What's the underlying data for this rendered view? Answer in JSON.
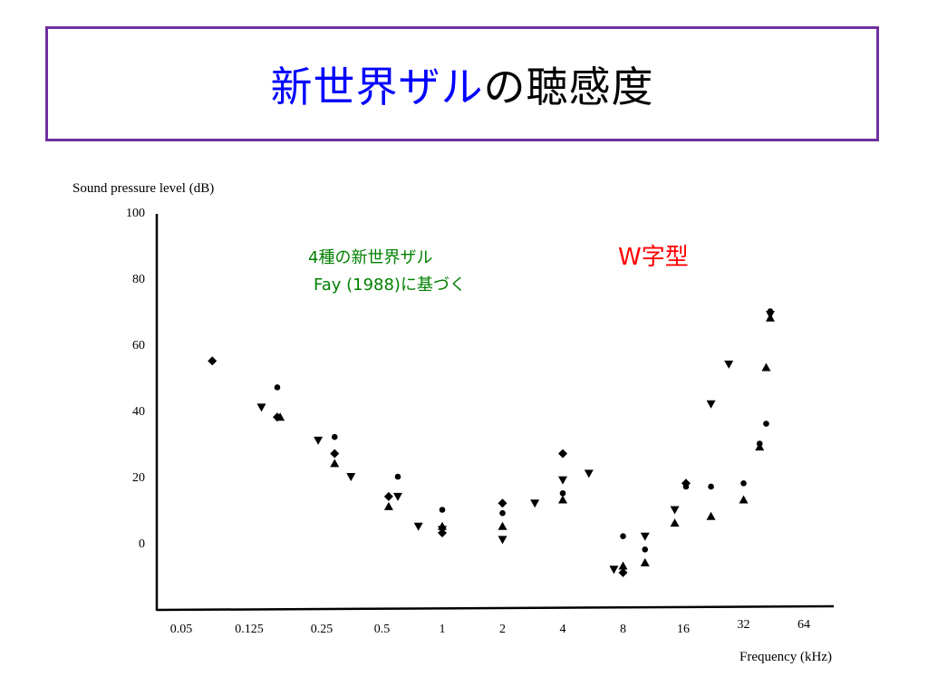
{
  "slide": {
    "title_part1": "新世界ザル",
    "title_part2": "の聴感度",
    "title_part1_color": "#0000ff",
    "border_color": "#7030a0"
  },
  "chart_data": {
    "type": "scatter",
    "ylabel": "Sound pressure level (dB)",
    "xlabel": "Frequency (kHz)",
    "x_scale": "log2",
    "ylim": [
      -20,
      100
    ],
    "yticks": [
      0,
      20,
      40,
      60,
      80,
      100
    ],
    "xticks": [
      "0.05",
      "0.125",
      "0.25",
      "0.5",
      "1",
      "2",
      "4",
      "8",
      "16",
      "32",
      "64"
    ],
    "annotations": {
      "species_line1": "4種の新世界ザル",
      "species_line2": "Fay (1988)に基づく",
      "species_color": "#008000",
      "shape_note": "W字型",
      "shape_note_color": "#ff0000"
    },
    "series": [
      {
        "marker": "diamond",
        "points": [
          {
            "x": 0.071,
            "y": 55
          },
          {
            "x": 0.15,
            "y": 38
          },
          {
            "x": 0.29,
            "y": 27
          },
          {
            "x": 0.54,
            "y": 14
          },
          {
            "x": 1.0,
            "y": 3
          },
          {
            "x": 2.0,
            "y": 12
          },
          {
            "x": 4.0,
            "y": 27
          },
          {
            "x": 8.0,
            "y": -9
          },
          {
            "x": 16.5,
            "y": 18
          }
        ]
      },
      {
        "marker": "circle",
        "points": [
          {
            "x": 0.15,
            "y": 47
          },
          {
            "x": 0.29,
            "y": 32
          },
          {
            "x": 0.6,
            "y": 20
          },
          {
            "x": 1.0,
            "y": 10
          },
          {
            "x": 2.0,
            "y": 9
          },
          {
            "x": 4.0,
            "y": 15
          },
          {
            "x": 8.0,
            "y": 2
          },
          {
            "x": 10.3,
            "y": -2
          },
          {
            "x": 16.5,
            "y": 17
          },
          {
            "x": 22.0,
            "y": 17
          },
          {
            "x": 32.0,
            "y": 18
          },
          {
            "x": 38.5,
            "y": 30
          },
          {
            "x": 41.5,
            "y": 36
          },
          {
            "x": 43.5,
            "y": 70
          }
        ]
      },
      {
        "marker": "triangle-up",
        "points": [
          {
            "x": 0.155,
            "y": 38
          },
          {
            "x": 0.29,
            "y": 24
          },
          {
            "x": 0.54,
            "y": 11
          },
          {
            "x": 1.0,
            "y": 5
          },
          {
            "x": 2.0,
            "y": 5
          },
          {
            "x": 4.0,
            "y": 13
          },
          {
            "x": 8.0,
            "y": -7
          },
          {
            "x": 10.3,
            "y": -6
          },
          {
            "x": 14.5,
            "y": 6
          },
          {
            "x": 22.0,
            "y": 8
          },
          {
            "x": 32.0,
            "y": 13
          },
          {
            "x": 38.5,
            "y": 29
          },
          {
            "x": 41.5,
            "y": 53
          },
          {
            "x": 43.5,
            "y": 68
          }
        ]
      },
      {
        "marker": "triangle-down",
        "points": [
          {
            "x": 0.125,
            "y": 41
          },
          {
            "x": 0.24,
            "y": 31
          },
          {
            "x": 0.35,
            "y": 20
          },
          {
            "x": 0.6,
            "y": 14
          },
          {
            "x": 0.76,
            "y": 5
          },
          {
            "x": 1.0,
            "y": 4
          },
          {
            "x": 2.0,
            "y": 1
          },
          {
            "x": 2.9,
            "y": 12
          },
          {
            "x": 4.0,
            "y": 19
          },
          {
            "x": 5.4,
            "y": 21
          },
          {
            "x": 7.2,
            "y": -8
          },
          {
            "x": 10.3,
            "y": 2
          },
          {
            "x": 14.5,
            "y": 10
          },
          {
            "x": 22.0,
            "y": 42
          },
          {
            "x": 27.0,
            "y": 54
          },
          {
            "x": 43.5,
            "y": 69
          }
        ]
      }
    ]
  }
}
